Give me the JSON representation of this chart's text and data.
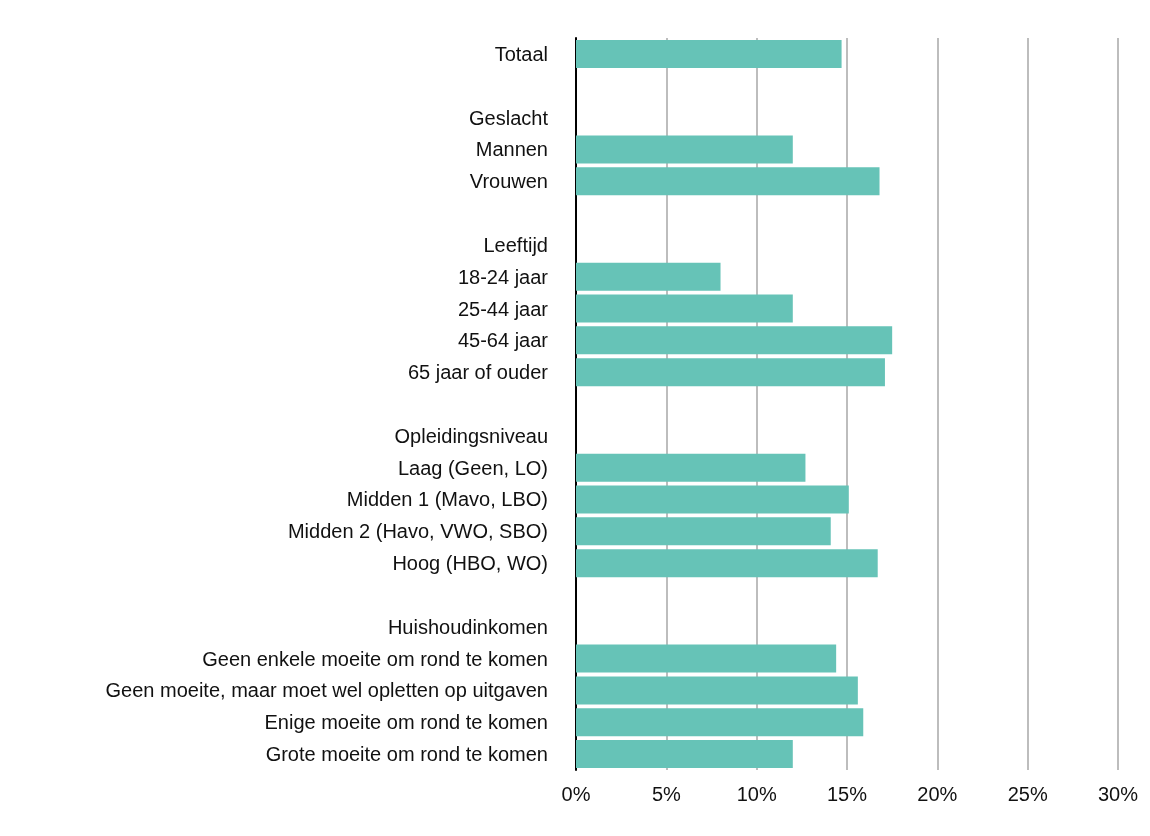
{
  "chart_data": {
    "type": "bar",
    "orientation": "horizontal",
    "categories": [
      "Totaal",
      null,
      "Geslacht",
      "Mannen",
      "Vrouwen",
      null,
      "Leeftijd",
      "18-24 jaar",
      "25-44 jaar",
      "45-64 jaar",
      "65 jaar of ouder",
      null,
      "Opleidingsniveau",
      "Laag (Geen, LO)",
      "Midden 1 (Mavo, LBO)",
      "Midden 2 (Havo, VWO, SBO)",
      "Hoog (HBO, WO)",
      null,
      "Huishoudinkomen",
      "Geen enkele moeite om rond te komen",
      "Geen moeite, maar moet wel opletten op uitgaven",
      "Enige moeite om rond te komen",
      "Grote moeite om rond te komen"
    ],
    "values": [
      14.7,
      null,
      null,
      12.0,
      16.8,
      null,
      null,
      8.0,
      12.0,
      17.5,
      17.1,
      null,
      null,
      12.7,
      15.1,
      14.1,
      16.7,
      null,
      null,
      14.4,
      15.6,
      15.9,
      12.0
    ],
    "color": "#66c3b7",
    "xlim": [
      0,
      30
    ],
    "xticks": [
      {
        "value": 0,
        "label": "0%"
      },
      {
        "value": 5,
        "label": "5%"
      },
      {
        "value": 10,
        "label": "10%"
      },
      {
        "value": 15,
        "label": "15%"
      },
      {
        "value": 20,
        "label": "20%"
      },
      {
        "value": 25,
        "label": "25%"
      },
      {
        "value": 30,
        "label": "30%"
      }
    ],
    "grid": "x"
  }
}
